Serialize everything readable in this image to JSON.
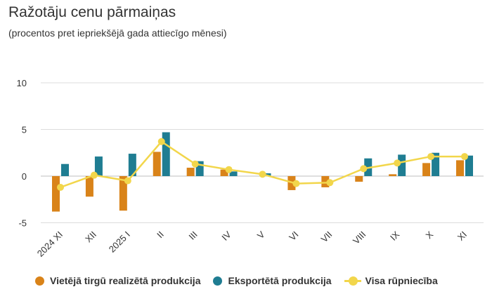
{
  "title": "Ražotāju cenu pārmaiņas",
  "subtitle": "(procentos pret iepriekšējā gada attiecīgo mēnesi)",
  "chart_data": {
    "type": "bar",
    "categories": [
      "2024 XI",
      "XII",
      "2025 I",
      "II",
      "III",
      "IV",
      "V",
      "VI",
      "VII",
      "VIII",
      "IX",
      "X",
      "XI"
    ],
    "series": [
      {
        "name": "Vietējā tirgū realizētā produkcija",
        "type": "bar",
        "color": "#d98319",
        "values": [
          -3.8,
          -2.2,
          -3.7,
          2.6,
          0.9,
          0.7,
          0.0,
          -1.5,
          -1.2,
          -0.6,
          0.2,
          1.4,
          1.7
        ]
      },
      {
        "name": "Eksportētā produkcija",
        "type": "bar",
        "color": "#1f7d92",
        "values": [
          1.3,
          2.1,
          2.4,
          4.7,
          1.6,
          0.5,
          0.3,
          0.0,
          0.0,
          1.9,
          2.3,
          2.5,
          2.2
        ]
      },
      {
        "name": "Visa rūpniecība",
        "type": "line",
        "color": "#f2d64b",
        "values": [
          -1.2,
          0.1,
          -0.5,
          3.7,
          1.3,
          0.7,
          0.2,
          -0.8,
          -0.7,
          0.8,
          1.4,
          2.1,
          2.1
        ]
      }
    ],
    "yticks": [
      -5,
      0,
      5,
      10
    ],
    "ylim": [
      -5,
      10
    ],
    "grid": true,
    "legend": "bottom"
  }
}
